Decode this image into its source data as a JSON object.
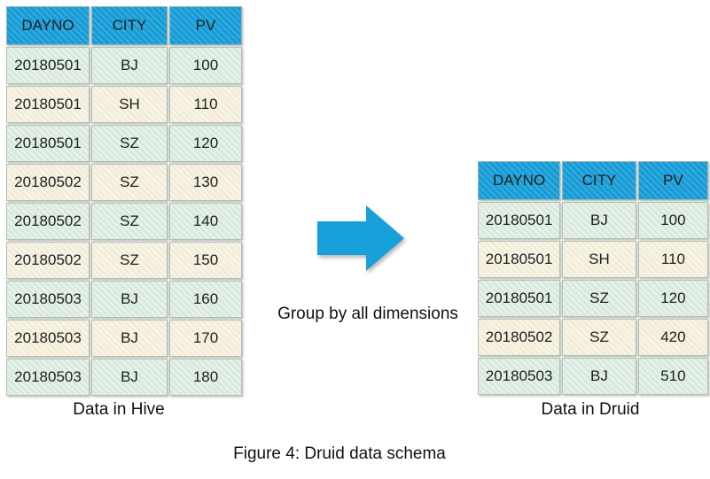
{
  "figure": {
    "caption": "Figure 4: Druid data schema",
    "group_label": "Group by all dimensions"
  },
  "hive_table": {
    "caption": "Data in Hive",
    "columns": [
      "DAYNO",
      "CITY",
      "PV"
    ],
    "rows": [
      [
        "20180501",
        "BJ",
        "100"
      ],
      [
        "20180501",
        "SH",
        "110"
      ],
      [
        "20180501",
        "SZ",
        "120"
      ],
      [
        "20180502",
        "SZ",
        "130"
      ],
      [
        "20180502",
        "SZ",
        "140"
      ],
      [
        "20180502",
        "SZ",
        "150"
      ],
      [
        "20180503",
        "BJ",
        "160"
      ],
      [
        "20180503",
        "BJ",
        "170"
      ],
      [
        "20180503",
        "BJ",
        "180"
      ]
    ]
  },
  "druid_table": {
    "caption": "Data in Druid",
    "columns": [
      "DAYNO",
      "CITY",
      "PV"
    ],
    "rows": [
      [
        "20180501",
        "BJ",
        "100"
      ],
      [
        "20180501",
        "SH",
        "110"
      ],
      [
        "20180501",
        "SZ",
        "120"
      ],
      [
        "20180502",
        "SZ",
        "420"
      ],
      [
        "20180503",
        "BJ",
        "510"
      ]
    ]
  },
  "colors": {
    "header_blue": "#18a0db",
    "row_green": "#d7e9dd",
    "row_cream": "#f2ecd7",
    "cell_border": "#b4bfb4",
    "arrow_blue": "#18a0db",
    "text": "#1f1f1f"
  }
}
